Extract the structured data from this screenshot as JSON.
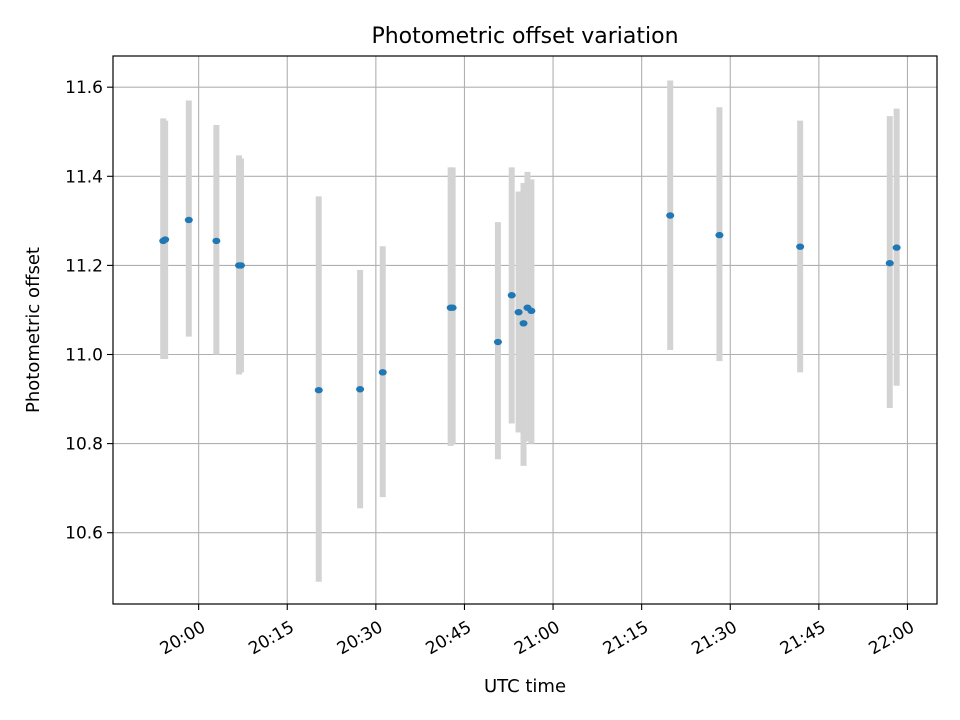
{
  "chart_data": {
    "type": "scatter",
    "title": "Photometric offset variation",
    "xlabel": "UTC time",
    "ylabel": "Photometric offset",
    "xlim": [
      "19:45:30",
      "22:05:00"
    ],
    "ylim": [
      10.44,
      11.67
    ],
    "xticks": [
      "20:00",
      "20:15",
      "20:30",
      "20:45",
      "21:00",
      "21:15",
      "21:30",
      "21:45",
      "22:00"
    ],
    "yticks": [
      "10.6",
      "10.8",
      "11.0",
      "11.2",
      "11.4",
      "11.6"
    ],
    "grid": true,
    "points": [
      {
        "t": "19:54:00",
        "y": 11.255,
        "lo": 10.99,
        "hi": 11.53
      },
      {
        "t": "19:54:20",
        "y": 11.258,
        "lo": 10.99,
        "hi": 11.525
      },
      {
        "t": "19:58:20",
        "y": 11.302,
        "lo": 11.04,
        "hi": 11.57
      },
      {
        "t": "20:03:00",
        "y": 11.255,
        "lo": 11.0,
        "hi": 11.515
      },
      {
        "t": "20:06:50",
        "y": 11.2,
        "lo": 10.955,
        "hi": 11.447
      },
      {
        "t": "20:07:10",
        "y": 11.2,
        "lo": 10.96,
        "hi": 11.44
      },
      {
        "t": "20:20:20",
        "y": 10.92,
        "lo": 10.49,
        "hi": 11.355
      },
      {
        "t": "20:27:20",
        "y": 10.922,
        "lo": 10.655,
        "hi": 11.19
      },
      {
        "t": "20:31:10",
        "y": 10.96,
        "lo": 10.68,
        "hi": 11.243
      },
      {
        "t": "20:42:40",
        "y": 11.105,
        "lo": 10.795,
        "hi": 11.42
      },
      {
        "t": "20:43:00",
        "y": 11.105,
        "lo": 10.8,
        "hi": 11.42
      },
      {
        "t": "20:50:40",
        "y": 11.028,
        "lo": 10.765,
        "hi": 11.297
      },
      {
        "t": "20:53:00",
        "y": 11.133,
        "lo": 10.845,
        "hi": 11.42
      },
      {
        "t": "20:54:10",
        "y": 11.095,
        "lo": 10.825,
        "hi": 11.366
      },
      {
        "t": "20:55:00",
        "y": 11.07,
        "lo": 10.75,
        "hi": 11.385
      },
      {
        "t": "20:55:40",
        "y": 11.105,
        "lo": 10.805,
        "hi": 11.41
      },
      {
        "t": "20:56:20",
        "y": 11.098,
        "lo": 10.8,
        "hi": 11.393
      },
      {
        "t": "21:19:50",
        "y": 11.312,
        "lo": 11.01,
        "hi": 11.615
      },
      {
        "t": "21:28:10",
        "y": 11.268,
        "lo": 10.985,
        "hi": 11.555
      },
      {
        "t": "21:41:50",
        "y": 11.242,
        "lo": 10.96,
        "hi": 11.525
      },
      {
        "t": "21:57:00",
        "y": 11.205,
        "lo": 10.88,
        "hi": 11.535
      },
      {
        "t": "21:58:10",
        "y": 11.24,
        "lo": 10.93,
        "hi": 11.552
      }
    ],
    "colors": {
      "marker": "#1f77b4",
      "errorbar": "#d3d3d3",
      "grid": "#b0b0b0"
    }
  }
}
